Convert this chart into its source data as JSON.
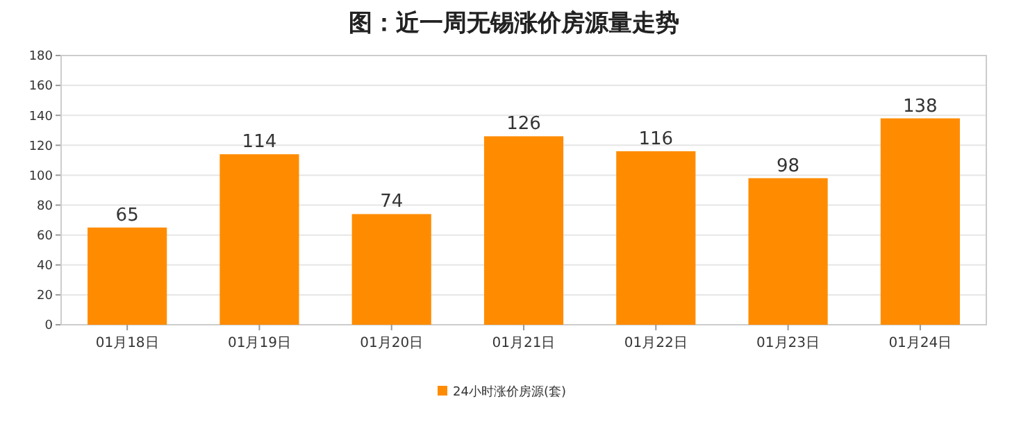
{
  "chart_data": {
    "type": "bar",
    "title": "图：近一周无锡涨价房源量走势",
    "categories": [
      "01月18日",
      "01月19日",
      "01月20日",
      "01月21日",
      "01月22日",
      "01月23日",
      "01月24日"
    ],
    "series": [
      {
        "name": "24小时涨价房源(套)",
        "color": "#ff8c00",
        "values": [
          65,
          114,
          74,
          126,
          116,
          98,
          138
        ]
      }
    ],
    "ylim": [
      0,
      180
    ],
    "yticks": [
      0,
      20,
      40,
      60,
      80,
      100,
      120,
      140,
      160,
      180
    ],
    "grid": "y",
    "legend": "bottom",
    "data_labels": true
  }
}
